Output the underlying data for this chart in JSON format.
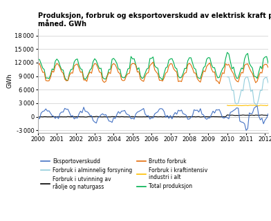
{
  "title": "Produksjon, forbruk og eksportoverskudd av elektrisk kraft per\nmåned. GWh",
  "ylabel": "GWh",
  "xlim_start": 2000.0,
  "xlim_end": 2012.17,
  "ylim": [
    -3500,
    19500
  ],
  "yticks": [
    -3000,
    0,
    3000,
    6000,
    9000,
    12000,
    15000,
    18000
  ],
  "xtick_labels": [
    "2000",
    "2001",
    "2002",
    "2003",
    "2004",
    "2005",
    "2006",
    "2007",
    "2008",
    "2009",
    "2010",
    "2011",
    "2012"
  ],
  "colors": {
    "eksportoverskudd": "#4472C4",
    "forbruk_utvinning": "#000000",
    "forbruk_kraftintensiv": "#FFC000",
    "forbruk_alminnelig": "#92CDDC",
    "brutto_forbruk": "#E36C09",
    "total_produksjon": "#00B050"
  },
  "legend_col1": [
    {
      "label": "Eksportoverskudd",
      "color": "#4472C4"
    },
    {
      "label": "Forbruk i utvinning av\nråolje og naturgass",
      "color": "#000000"
    },
    {
      "label": "Forbruk i kraftintensiv\nindustri i alt",
      "color": "#FFC000"
    }
  ],
  "legend_col2": [
    {
      "label": "Forbruk i alminnelig forsyning",
      "color": "#92CDDC"
    },
    {
      "label": "Brutto forbruk",
      "color": "#E36C09"
    },
    {
      "label": "Total produksjon",
      "color": "#00B050"
    }
  ]
}
